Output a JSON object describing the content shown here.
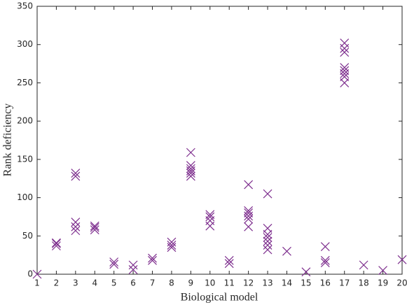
{
  "chart_data": {
    "type": "scatter",
    "xlabel": "Biological model",
    "ylabel": "Rank deficiency",
    "color": "#7e2f8e",
    "x": [
      1,
      2,
      2,
      2,
      3,
      3,
      3,
      3,
      3,
      4,
      4,
      4,
      5,
      5,
      6,
      6,
      7,
      7,
      8,
      8,
      8,
      9,
      9,
      9,
      9,
      9,
      9,
      10,
      10,
      10,
      10,
      11,
      11,
      12,
      12,
      12,
      12,
      12,
      12,
      13,
      13,
      13,
      13,
      13,
      13,
      13,
      14,
      15,
      16,
      16,
      16,
      17,
      17,
      17,
      17,
      17,
      17,
      17,
      17,
      18,
      19,
      20
    ],
    "values": [
      0,
      37,
      40,
      41,
      128,
      132,
      57,
      62,
      68,
      58,
      61,
      63,
      13,
      16,
      6,
      12,
      18,
      21,
      35,
      38,
      42,
      128,
      132,
      135,
      138,
      142,
      159,
      63,
      70,
      75,
      78,
      14,
      18,
      62,
      72,
      76,
      80,
      83,
      117,
      32,
      38,
      43,
      48,
      52,
      60,
      105,
      30,
      3,
      15,
      18,
      36,
      250,
      258,
      262,
      266,
      270,
      290,
      295,
      302,
      12,
      5,
      19
    ],
    "xlim": [
      1,
      20
    ],
    "xticks": [
      1,
      2,
      3,
      4,
      5,
      6,
      7,
      8,
      9,
      10,
      11,
      12,
      13,
      14,
      15,
      16,
      17,
      18,
      19,
      20
    ],
    "ylim": [
      0,
      350
    ],
    "yticks": [
      0,
      50,
      100,
      150,
      200,
      250,
      300,
      350
    ]
  }
}
